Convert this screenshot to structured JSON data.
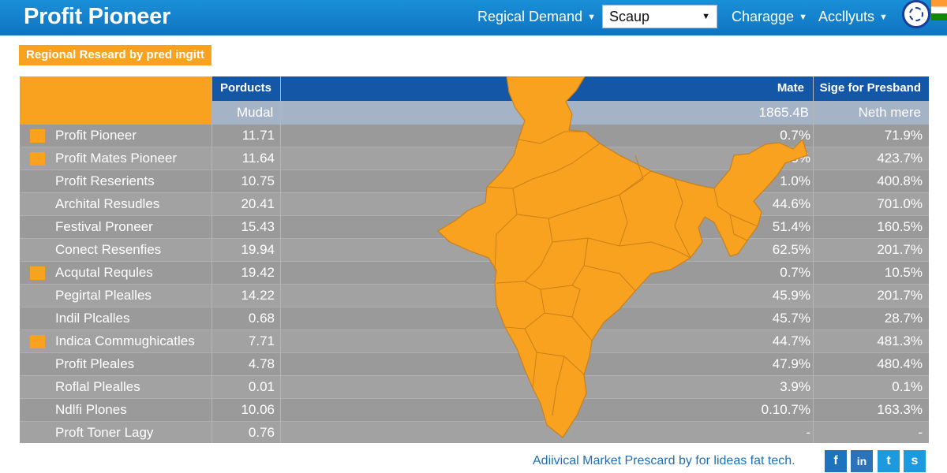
{
  "header": {
    "app_title": "Profit Pioneer",
    "nav": {
      "regional_demand": "Regical Demand",
      "select_value": "Scaup",
      "charagge": "Charagge",
      "accllyuts": "Accllyuts"
    }
  },
  "subtitle": "Regional Researd by pred ingitt",
  "table": {
    "headers": {
      "products": "Porducts",
      "mate": "Mate",
      "sige": "Sige for Presband"
    },
    "subheaders": {
      "mudal": "Mudal",
      "total": "1865.4B",
      "neth": "Neth mere"
    },
    "rows": [
      {
        "name": "Profit Pioneer",
        "value": "11.71",
        "mate": "0.7%",
        "sige": "71.9%",
        "marker": true
      },
      {
        "name": "Profit Mates Pioneer",
        "value": "11.64",
        "mate": "45.3%",
        "sige": "423.7%",
        "marker": true
      },
      {
        "name": "Profit Reserients",
        "value": "10.75",
        "mate": "1.0%",
        "sige": "400.8%",
        "marker": false
      },
      {
        "name": "Archital Resudles",
        "value": "20.41",
        "mate": "44.6%",
        "sige": "701.0%",
        "marker": false
      },
      {
        "name": "Festival Proneer",
        "value": "15.43",
        "mate": "51.4%",
        "sige": "160.5%",
        "marker": false
      },
      {
        "name": "Conect Resenfies",
        "value": "19.94",
        "mate": "62.5%",
        "sige": "201.7%",
        "marker": false
      },
      {
        "name": "Acqutal Requles",
        "value": "19.42",
        "mate": "0.7%",
        "sige": "10.5%",
        "marker": true
      },
      {
        "name": "Pegirtal Plealles",
        "value": "14.22",
        "mate": "45.9%",
        "sige": "201.7%",
        "marker": false
      },
      {
        "name": "Indil Plcalles",
        "value": "0.68",
        "mate": "45.7%",
        "sige": "28.7%",
        "marker": false
      },
      {
        "name": "Indica Commughicatles",
        "value": "7.71",
        "mate": "44.7%",
        "sige": "481.3%",
        "marker": true
      },
      {
        "name": "Profit Pleales",
        "value": "4.78",
        "mate": "47.9%",
        "sige": "480.4%",
        "marker": false
      },
      {
        "name": "Roflal Plealles",
        "value": "0.01",
        "mate": "3.9%",
        "sige": "0.1%",
        "marker": false
      },
      {
        "name": "Ndlfi Plones",
        "value": "10.06",
        "mate": "0.10.7%",
        "sige": "163.3%",
        "marker": false
      },
      {
        "name": "Proft Toner Lagy",
        "value": "0.76",
        "mate": "-",
        "sige": "-",
        "marker": false
      }
    ]
  },
  "footer": {
    "text": "Adiivical Market Prescard by for lideas fat tech.",
    "social": [
      "f",
      "in",
      "t",
      "s"
    ]
  },
  "colors": {
    "header_bg": "#0f74c2",
    "accent_orange": "#f9a21f",
    "table_header": "#1357a6",
    "table_body": "#9a9a9a",
    "footer_text": "#1e6fb7"
  }
}
